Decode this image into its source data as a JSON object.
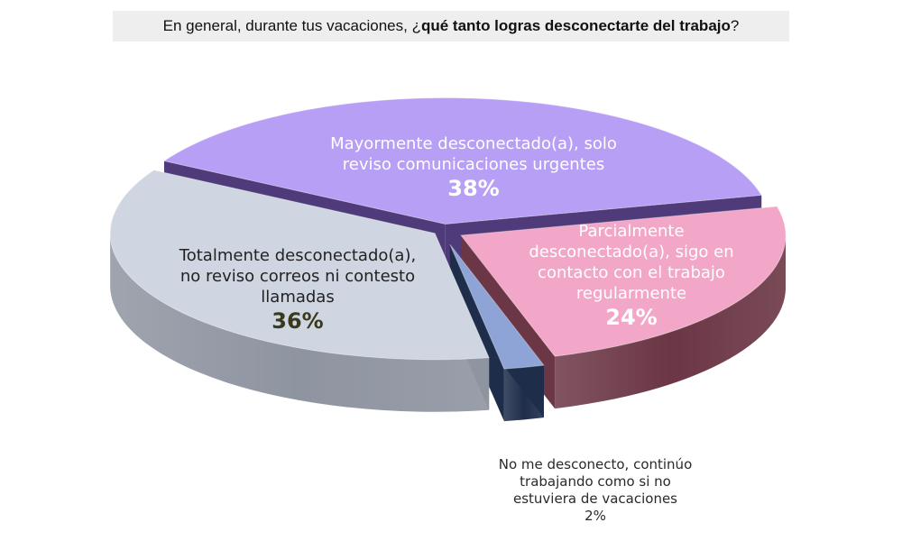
{
  "title": {
    "pre": "En general, durante tus vacaciones, ",
    "open_q": "¿",
    "bold": "qué tanto logras desconectarte del trabajo",
    "close_q": "?"
  },
  "chart_data": {
    "type": "pie",
    "style": "3d-exploded",
    "unit": "%",
    "slices": [
      {
        "label_lines": [
          "Mayormente desconectado(a), solo",
          "reviso comunicaciones urgentes"
        ],
        "value": 38,
        "value_text": "38%",
        "top_color": "#b79ff5",
        "side_color": "#4f3a7a"
      },
      {
        "label_lines": [
          "Parcialmente",
          "desconectado(a), sigo en",
          "contacto con el trabajo",
          "regularmente"
        ],
        "value": 24,
        "value_text": "24%",
        "top_color": "#f2a6c8",
        "side_color": "#6b3645"
      },
      {
        "label_lines": [
          "No me desconecto, continúo",
          "trabajando como si no",
          "estuviera de vacaciones"
        ],
        "value": 2,
        "value_text": "2%",
        "top_color": "#8ea4d6",
        "side_color": "#1e2d4a"
      },
      {
        "label_lines": [
          "Totalmente desconectado(a),",
          "no reviso correos ni contesto",
          "llamadas"
        ],
        "value": 36,
        "value_text": "36%",
        "top_color": "#cfd6e2",
        "side_color": "#8e94a0"
      }
    ]
  }
}
